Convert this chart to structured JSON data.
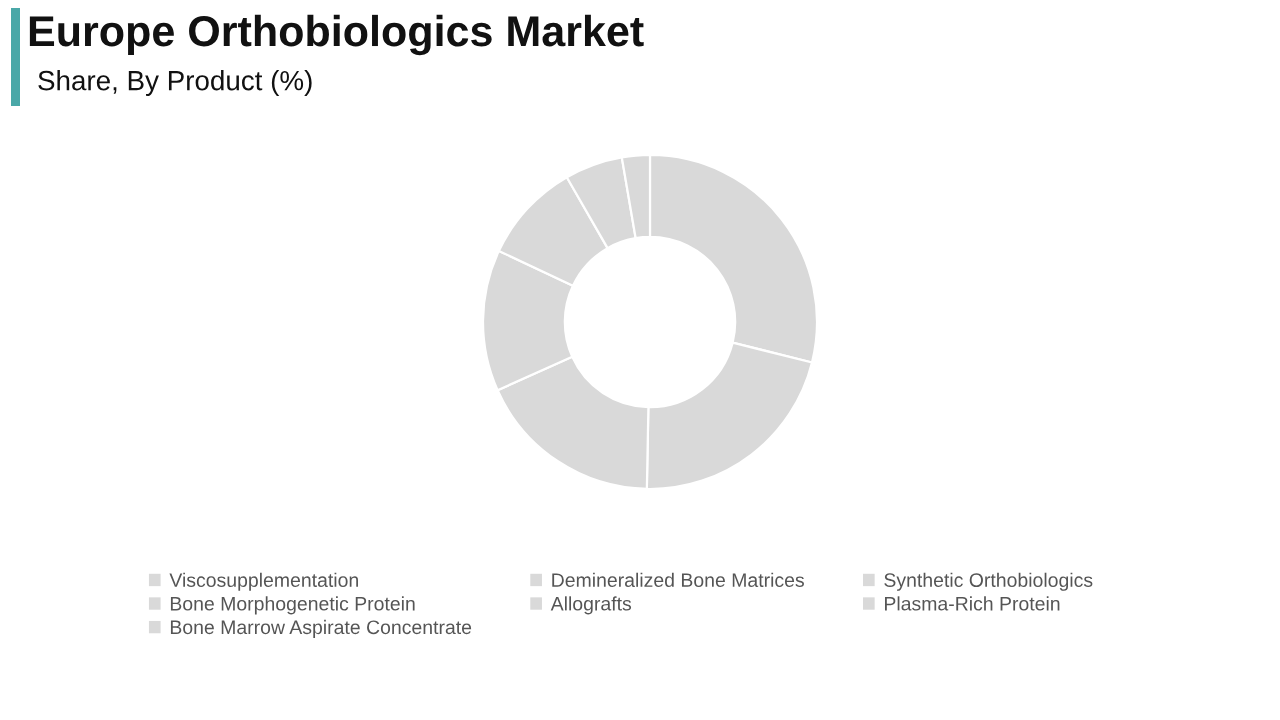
{
  "chart_data": {
    "type": "donut",
    "title": "Europe Orthobiologics Market",
    "subtitle": "Share, By Product (%)",
    "categories": [
      "Viscosupplementation",
      "Demineralized Bone Matrices",
      "Synthetic Orthobiologics",
      "Bone Morphogenetic Protein",
      "Allografts",
      "Plasma-Rich Protein",
      "Bone Marrow Aspirate Concentrate"
    ],
    "values": [
      28.9,
      21.4,
      18.0,
      13.7,
      9.7,
      5.6,
      2.7
    ],
    "colors": [
      "#d9d9d9",
      "#d9d9d9",
      "#d9d9d9",
      "#d9d9d9",
      "#d9d9d9",
      "#d9d9d9",
      "#d9d9d9"
    ],
    "legend": "bottom"
  }
}
